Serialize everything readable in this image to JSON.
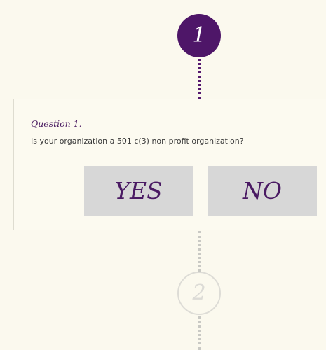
{
  "steps": [
    {
      "number": "1",
      "state": "active"
    },
    {
      "number": "2",
      "state": "inactive"
    }
  ],
  "question": {
    "title": "Question 1.",
    "text": "Is your organization a 501 c(3) non profit organization?"
  },
  "answers": {
    "yes_label": "YES",
    "no_label": "NO"
  },
  "colors": {
    "background": "#fbf9ee",
    "accent": "#4e1668",
    "button": "#d7d7d7",
    "inactive": "#dcdbd6"
  }
}
